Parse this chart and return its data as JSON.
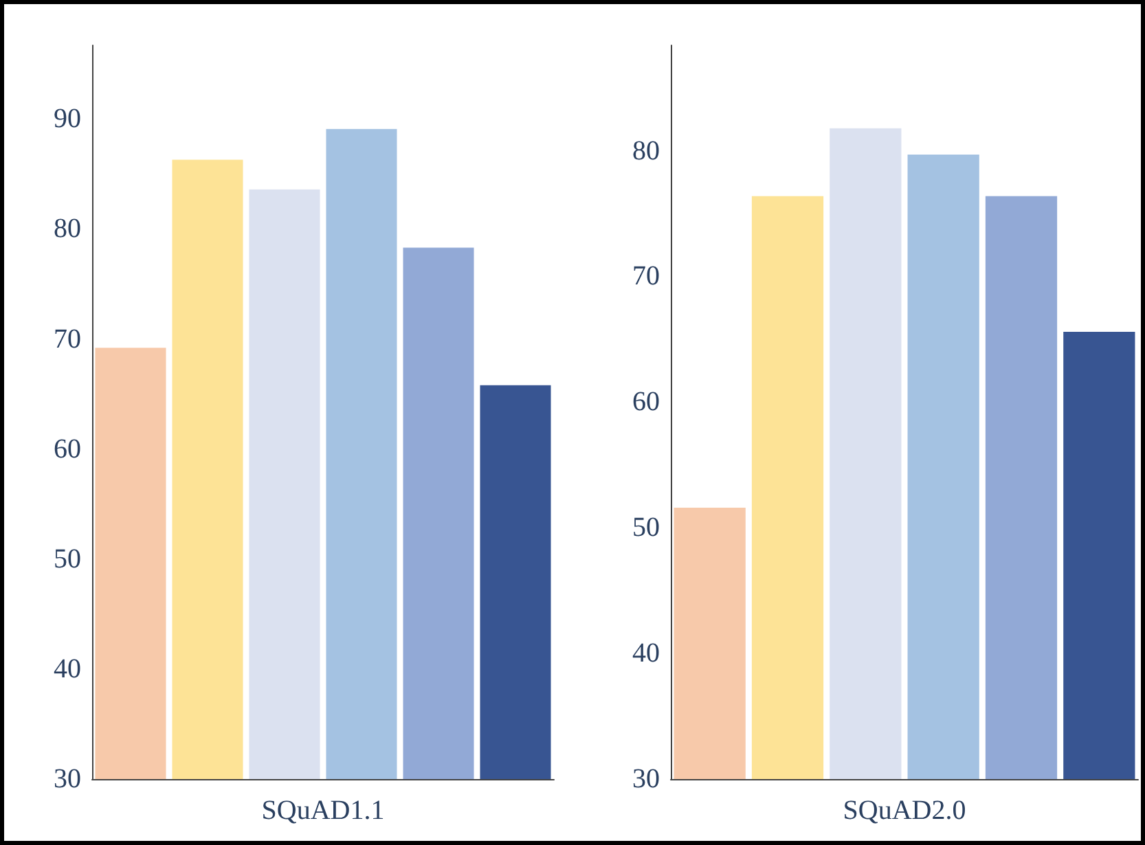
{
  "chart_data": [
    {
      "type": "bar",
      "xlabel": "SQuAD1.1",
      "categories": [
        null,
        null,
        null,
        null,
        null,
        null
      ],
      "ylim": [
        30,
        96.7
      ],
      "yticks": [
        30,
        40,
        50,
        60,
        70,
        80,
        90
      ],
      "grid": false,
      "values": [
        69.2,
        86.3,
        83.6,
        89.1,
        78.3,
        65.8
      ],
      "colors": [
        "#f7c9aa",
        "#fde396",
        "#dbe1f0",
        "#a4c2e2",
        "#92a9d6",
        "#385592"
      ]
    },
    {
      "type": "bar",
      "xlabel": "SQuAD2.0",
      "categories": [
        null,
        null,
        null,
        null,
        null,
        null
      ],
      "ylim": [
        30,
        88.4
      ],
      "yticks": [
        30,
        40,
        50,
        60,
        70,
        80
      ],
      "grid": false,
      "values": [
        51.6,
        76.4,
        81.8,
        79.7,
        76.4,
        65.6
      ],
      "colors": [
        "#f7c9aa",
        "#fde396",
        "#dbe1f0",
        "#a4c2e2",
        "#92a9d6",
        "#385592"
      ]
    }
  ]
}
